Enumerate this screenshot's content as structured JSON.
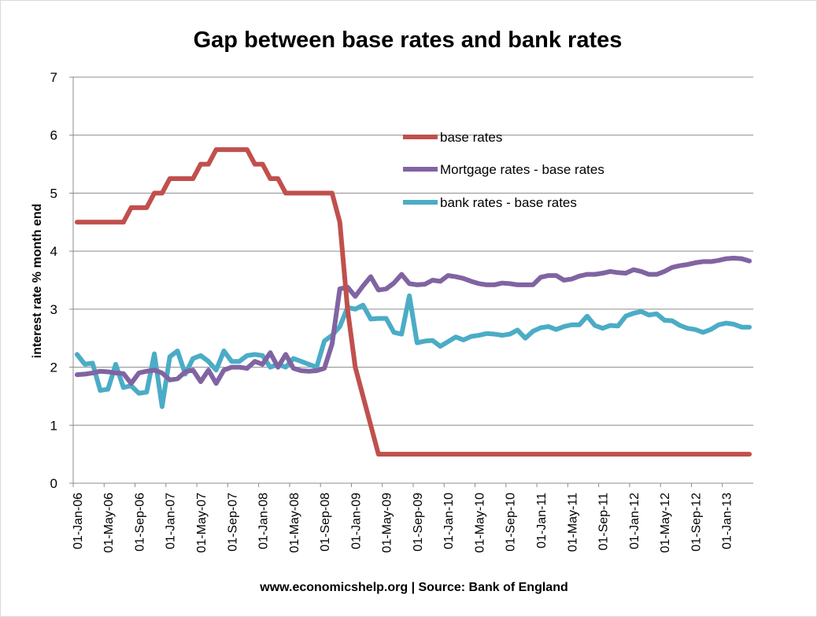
{
  "chart_data": {
    "type": "line",
    "title": "Gap between base rates and bank rates",
    "ylabel": "interest rate % month end",
    "footer": "www.economicshelp.org | Source: Bank of England",
    "ylim": [
      0,
      7
    ],
    "yticks": [
      "0",
      "1",
      "2",
      "3",
      "4",
      "5",
      "6",
      "7"
    ],
    "grid": "horizontal",
    "legend_position": "upper-center",
    "xtick_labels": [
      "01-Jan-06",
      "01-May-06",
      "01-Sep-06",
      "01-Jan-07",
      "01-May-07",
      "01-Sep-07",
      "01-Jan-08",
      "01-May-08",
      "01-Sep-08",
      "01-Jan-09",
      "01-May-09",
      "01-Sep-09",
      "01-Jan-10",
      "01-May-10",
      "01-Sep-10",
      "01-Jan-11",
      "01-May-11",
      "01-Sep-11",
      "01-Jan-12",
      "01-May-12",
      "01-Sep-12",
      "01-Jan-13"
    ],
    "x_start": "Jan-06",
    "x_end": "Apr-13",
    "series": [
      {
        "name": "base rates",
        "color": "#c0504d",
        "values": [
          4.5,
          4.5,
          4.5,
          4.5,
          4.5,
          4.5,
          4.5,
          4.75,
          4.75,
          4.75,
          5,
          5,
          5.25,
          5.25,
          5.25,
          5.25,
          5.5,
          5.5,
          5.75,
          5.75,
          5.75,
          5.75,
          5.75,
          5.5,
          5.5,
          5.25,
          5.25,
          5,
          5,
          5,
          5,
          5,
          5,
          5,
          4.5,
          3,
          2,
          1.5,
          1,
          0.5,
          0.5,
          0.5,
          0.5,
          0.5,
          0.5,
          0.5,
          0.5,
          0.5,
          0.5,
          0.5,
          0.5,
          0.5,
          0.5,
          0.5,
          0.5,
          0.5,
          0.5,
          0.5,
          0.5,
          0.5,
          0.5,
          0.5,
          0.5,
          0.5,
          0.5,
          0.5,
          0.5,
          0.5,
          0.5,
          0.5,
          0.5,
          0.5,
          0.5,
          0.5,
          0.5,
          0.5,
          0.5,
          0.5,
          0.5,
          0.5,
          0.5,
          0.5,
          0.5,
          0.5,
          0.5,
          0.5,
          0.5,
          0.5
        ]
      },
      {
        "name": "Mortgage rates - base rates",
        "color": "#8064a2",
        "values": [
          1.87,
          1.88,
          1.9,
          1.93,
          1.92,
          1.9,
          1.89,
          1.72,
          1.9,
          1.93,
          1.95,
          1.9,
          1.78,
          1.8,
          1.92,
          1.95,
          1.75,
          1.95,
          1.72,
          1.95,
          2,
          2,
          1.98,
          2.1,
          2.05,
          2.25,
          2.0,
          2.22,
          1.98,
          1.94,
          1.93,
          1.94,
          1.98,
          2.4,
          3.35,
          3.38,
          3.22,
          3.4,
          3.56,
          3.33,
          3.35,
          3.45,
          3.6,
          3.44,
          3.42,
          3.43,
          3.5,
          3.48,
          3.58,
          3.56,
          3.53,
          3.48,
          3.44,
          3.42,
          3.42,
          3.45,
          3.44,
          3.42,
          3.42,
          3.42,
          3.55,
          3.58,
          3.58,
          3.5,
          3.52,
          3.57,
          3.6,
          3.6,
          3.62,
          3.65,
          3.63,
          3.62,
          3.68,
          3.65,
          3.6,
          3.6,
          3.65,
          3.72,
          3.75,
          3.77,
          3.8,
          3.82,
          3.82,
          3.84,
          3.87,
          3.88,
          3.87,
          3.83
        ]
      },
      {
        "name": "bank rates - base rates",
        "color": "#4bacc6",
        "values": [
          2.22,
          2.05,
          2.07,
          1.6,
          1.62,
          2.05,
          1.65,
          1.68,
          1.55,
          1.57,
          2.23,
          1.32,
          2.18,
          2.28,
          1.88,
          2.15,
          2.2,
          2.1,
          1.95,
          2.28,
          2.1,
          2.1,
          2.2,
          2.22,
          2.2,
          2.0,
          2.05,
          2.0,
          2.15,
          2.1,
          2.05,
          2.0,
          2.45,
          2.55,
          2.7,
          3.03,
          3.0,
          3.07,
          2.83,
          2.84,
          2.84,
          2.6,
          2.57,
          3.23,
          2.42,
          2.45,
          2.46,
          2.36,
          2.44,
          2.52,
          2.47,
          2.53,
          2.55,
          2.58,
          2.57,
          2.55,
          2.57,
          2.64,
          2.5,
          2.62,
          2.68,
          2.7,
          2.65,
          2.7,
          2.73,
          2.73,
          2.88,
          2.72,
          2.67,
          2.72,
          2.71,
          2.88,
          2.93,
          2.96,
          2.9,
          2.92,
          2.81,
          2.8,
          2.72,
          2.67,
          2.65,
          2.6,
          2.65,
          2.73,
          2.76,
          2.74,
          2.69,
          2.69
        ]
      }
    ]
  }
}
